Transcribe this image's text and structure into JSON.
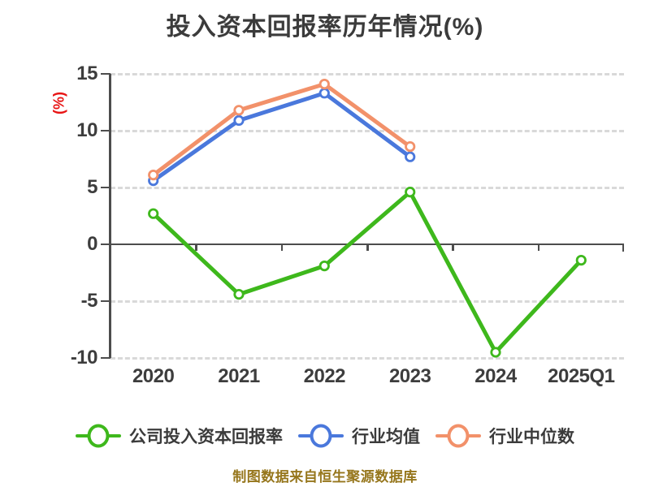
{
  "title": "投入资本回报率历年情况(%)",
  "footer": "制图数据来自恒生聚源数据库",
  "chart_data": {
    "type": "line",
    "title": "投入资本回报率历年情况(%)",
    "xlabel": "",
    "ylabel": "(%)",
    "ylabel_color": "#e81515",
    "categories": [
      "2020",
      "2021",
      "2022",
      "2023",
      "2024",
      "2025Q1"
    ],
    "y_ticks": [
      15,
      10,
      5,
      0,
      -5,
      -10
    ],
    "ylim": [
      -10,
      15
    ],
    "grid": "horizontal dashed gridlines, solid gray line at zero with downward ticks at category boundaries",
    "legend_position": "bottom",
    "marker_style": "white-filled circle with colored ring",
    "series": [
      {
        "key": "company-roic",
        "name": "公司投入资本回报率",
        "color": "#3eb81c",
        "values": [
          2.7,
          -4.4,
          -1.9,
          4.6,
          -9.5,
          -1.4
        ]
      },
      {
        "key": "industry-mean",
        "name": "行业均值",
        "color": "#4a78dc",
        "values": [
          5.6,
          10.9,
          13.3,
          7.7,
          null,
          null
        ]
      },
      {
        "key": "industry-median",
        "name": "行业中位数",
        "color": "#f2916a",
        "values": [
          6.1,
          11.8,
          14.1,
          8.6,
          null,
          null
        ]
      }
    ],
    "colors": {
      "title_text": "#3b3b3b",
      "tick_text": "#3d3d3d",
      "axis": "#4d4d4d",
      "grid": "#d9d9d9",
      "footer_text": "#96761c",
      "background": "#ffffff"
    }
  }
}
